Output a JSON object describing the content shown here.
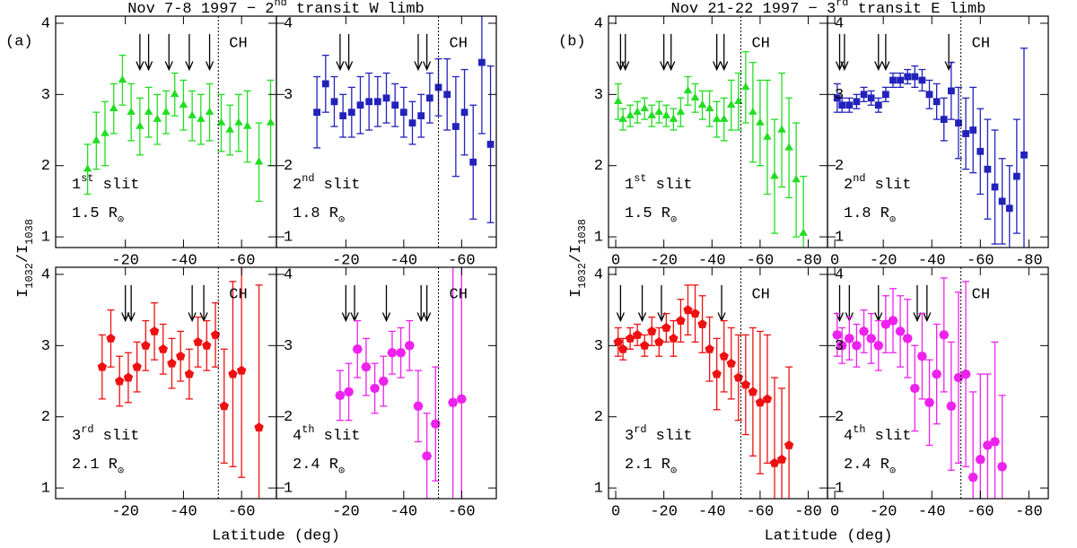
{
  "figure": {
    "groups": [
      {
        "tag": "(a)",
        "title": [
          "Nov 7-8 1997 − 2",
          "nd",
          " transit W limb"
        ],
        "xlabel": "Latitude (deg)",
        "ylabel": [
          "I",
          "1032",
          "/I",
          "1038"
        ]
      },
      {
        "tag": "(b)",
        "title": [
          "Nov 21-22 1997 − 3",
          "rd",
          " transit E limb"
        ],
        "xlabel": "Latitude (deg)",
        "ylabel": [
          "I",
          "1032",
          "/I",
          "1038"
        ]
      }
    ]
  },
  "chart_data": [
    {
      "type": "scatter",
      "marker": "triangle",
      "color": "#22dd22",
      "xlim": [
        4,
        -72
      ],
      "ylim": [
        0.85,
        4.1
      ],
      "xticks": [
        -20,
        -40,
        -60
      ],
      "yticks": [
        1,
        2,
        3,
        4
      ],
      "boundary": -52,
      "boundary_label": "CH",
      "label_line1": [
        "1",
        "st",
        " slit"
      ],
      "label_line2": [
        "1.5 R",
        "⊙"
      ],
      "arrows": [
        -25,
        -28,
        -35,
        -42,
        -49
      ],
      "series": [
        {
          "x": [
            -7,
            -10,
            -13,
            -16,
            -19,
            -22,
            -25,
            -28,
            -31,
            -34,
            -37,
            -40,
            -43,
            -46,
            -49,
            -53,
            -56,
            -59,
            -62,
            -66,
            -70
          ],
          "values": [
            1.95,
            2.35,
            2.45,
            2.8,
            3.2,
            2.75,
            2.55,
            2.75,
            2.65,
            2.75,
            3.0,
            2.85,
            2.7,
            2.65,
            2.75,
            2.6,
            2.5,
            2.6,
            2.55,
            2.05,
            2.6
          ],
          "errors": [
            0.35,
            0.4,
            0.45,
            0.35,
            0.35,
            0.4,
            0.4,
            0.35,
            0.35,
            0.3,
            0.3,
            0.35,
            0.35,
            0.35,
            0.4,
            0.4,
            0.35,
            0.4,
            0.5,
            0.55,
            0.6
          ]
        }
      ]
    },
    {
      "type": "scatter",
      "marker": "square",
      "color": "#2222bb",
      "xlim": [
        4,
        -72
      ],
      "ylim": [
        0.85,
        4.1
      ],
      "xticks": [
        -20,
        -40,
        -60
      ],
      "yticks": [
        1,
        2,
        3,
        4
      ],
      "boundary": -52,
      "boundary_label": "CH",
      "label_line1": [
        "2",
        "nd",
        " slit"
      ],
      "label_line2": [
        "1.8 R",
        "⊙"
      ],
      "arrows": [
        -18,
        -21,
        -45,
        -48
      ],
      "series": [
        {
          "x": [
            -10,
            -13,
            -16,
            -19,
            -22,
            -25,
            -28,
            -31,
            -34,
            -37,
            -40,
            -43,
            -46,
            -49,
            -52,
            -55,
            -58,
            -61,
            -64,
            -67,
            -70
          ],
          "values": [
            2.75,
            3.15,
            2.9,
            2.7,
            2.75,
            2.85,
            2.9,
            2.9,
            2.95,
            2.85,
            2.75,
            2.6,
            2.7,
            2.95,
            3.1,
            3.0,
            2.55,
            2.75,
            2.05,
            3.45,
            2.3
          ],
          "errors": [
            0.5,
            0.4,
            0.35,
            0.3,
            0.35,
            0.4,
            0.4,
            0.35,
            0.35,
            0.3,
            0.35,
            0.3,
            0.3,
            0.35,
            0.4,
            0.5,
            0.7,
            0.6,
            0.8,
            1.0,
            1.1
          ]
        }
      ]
    },
    {
      "type": "scatter",
      "marker": "pentagon",
      "color": "#ee1111",
      "xlim": [
        4,
        -72
      ],
      "ylim": [
        0.85,
        4.1
      ],
      "xticks": [
        -20,
        -40,
        -60
      ],
      "yticks": [
        1,
        2,
        3,
        4
      ],
      "boundary": -52,
      "boundary_label": "CH",
      "label_line1": [
        "3",
        "rd",
        " slit"
      ],
      "label_line2": [
        "2.1 R",
        "⊙"
      ],
      "arrows": [
        -20,
        -22,
        -43,
        -47
      ],
      "series": [
        {
          "x": [
            -12,
            -15,
            -18,
            -21,
            -24,
            -27,
            -30,
            -33,
            -36,
            -39,
            -42,
            -45,
            -48,
            -51,
            -54,
            -57,
            -60,
            -66
          ],
          "values": [
            2.7,
            3.1,
            2.5,
            2.55,
            2.7,
            3.0,
            3.2,
            2.95,
            2.75,
            2.85,
            2.6,
            3.05,
            3.0,
            3.15,
            2.15,
            2.6,
            2.65,
            1.85
          ],
          "errors": [
            0.45,
            0.4,
            0.35,
            0.35,
            0.35,
            0.35,
            0.4,
            0.35,
            0.35,
            0.35,
            0.35,
            0.35,
            0.35,
            0.45,
            0.8,
            1.3,
            1.5,
            2.0
          ]
        }
      ]
    },
    {
      "type": "scatter",
      "marker": "hexagon",
      "color": "#ee22ee",
      "xlim": [
        4,
        -72
      ],
      "ylim": [
        0.85,
        4.1
      ],
      "xticks": [
        -20,
        -40,
        -60
      ],
      "yticks": [
        1,
        2,
        3,
        4
      ],
      "boundary": -52,
      "boundary_label": "CH",
      "label_line1": [
        "4",
        "th",
        " slit"
      ],
      "label_line2": [
        "2.4 R",
        "⊙"
      ],
      "arrows": [
        -20,
        -23,
        -34,
        -46,
        -48
      ],
      "series": [
        {
          "x": [
            -18,
            -21,
            -24,
            -27,
            -30,
            -33,
            -36,
            -39,
            -42,
            -45,
            -48,
            -51,
            -57,
            -60
          ],
          "values": [
            2.3,
            2.35,
            2.95,
            2.7,
            2.4,
            2.5,
            2.9,
            2.9,
            3.0,
            2.15,
            1.45,
            1.9,
            2.2,
            2.25
          ],
          "errors": [
            0.35,
            0.4,
            0.4,
            0.4,
            0.35,
            0.35,
            0.3,
            0.35,
            0.35,
            0.5,
            0.6,
            0.8,
            2.0,
            2.2
          ]
        }
      ]
    },
    {
      "type": "scatter",
      "marker": "triangle",
      "color": "#22dd22",
      "xlim": [
        3,
        -88
      ],
      "ylim": [
        0.85,
        4.1
      ],
      "xticks": [
        0,
        -20,
        -40,
        -60,
        -80
      ],
      "yticks": [
        1,
        2,
        3,
        4
      ],
      "boundary": -52,
      "boundary_label": "CH",
      "label_line1": [
        "1",
        "st",
        " slit"
      ],
      "label_line2": [
        "1.5 R",
        "⊙"
      ],
      "arrows": [
        -2,
        -4,
        -20,
        -23,
        -42,
        -45
      ],
      "series": [
        {
          "x": [
            -1,
            -3,
            -6,
            -9,
            -12,
            -15,
            -18,
            -21,
            -24,
            -27,
            -30,
            -33,
            -36,
            -39,
            -42,
            -45,
            -48,
            -51,
            -54,
            -57,
            -60,
            -63,
            -66,
            -69,
            -72,
            -75,
            -78
          ],
          "values": [
            2.9,
            2.65,
            2.7,
            2.75,
            2.8,
            2.7,
            2.75,
            2.7,
            2.65,
            2.75,
            3.05,
            2.95,
            2.85,
            2.8,
            2.65,
            2.65,
            2.85,
            2.9,
            3.1,
            2.75,
            2.6,
            2.4,
            1.85,
            2.5,
            2.25,
            1.8,
            1.05
          ],
          "errors": [
            0.25,
            0.15,
            0.15,
            0.15,
            0.15,
            0.15,
            0.15,
            0.15,
            0.15,
            0.2,
            0.2,
            0.2,
            0.2,
            0.25,
            0.25,
            0.3,
            0.35,
            0.4,
            0.5,
            0.7,
            0.6,
            0.8,
            0.8,
            0.8,
            0.7,
            0.8,
            0.8
          ]
        }
      ]
    },
    {
      "type": "scatter",
      "marker": "square",
      "color": "#2222bb",
      "xlim": [
        3,
        -88
      ],
      "ylim": [
        0.85,
        4.1
      ],
      "xticks": [
        0,
        -20,
        -40,
        -60,
        -80
      ],
      "yticks": [
        1,
        2,
        3,
        4
      ],
      "boundary": -52,
      "boundary_label": "CH",
      "label_line1": [
        "2",
        "nd",
        " slit"
      ],
      "label_line2": [
        "1.8 R",
        "⊙"
      ],
      "arrows": [
        -2,
        -4,
        -18,
        -21,
        -47
      ],
      "series": [
        {
          "x": [
            -1,
            -3,
            -6,
            -9,
            -12,
            -15,
            -18,
            -21,
            -24,
            -27,
            -30,
            -33,
            -36,
            -39,
            -42,
            -45,
            -48,
            -51,
            -54,
            -57,
            -60,
            -63,
            -66,
            -69,
            -72,
            -75,
            -78
          ],
          "values": [
            2.95,
            2.85,
            2.85,
            2.9,
            3.0,
            2.95,
            2.85,
            3.0,
            3.2,
            3.2,
            3.25,
            3.25,
            3.2,
            3.0,
            2.9,
            2.65,
            3.05,
            2.6,
            2.45,
            2.5,
            2.2,
            1.95,
            1.7,
            1.5,
            1.4,
            1.85,
            2.15
          ],
          "errors": [
            0.2,
            0.1,
            0.1,
            0.1,
            0.1,
            0.1,
            0.1,
            0.1,
            0.1,
            0.1,
            0.1,
            0.15,
            0.15,
            0.2,
            0.25,
            0.3,
            0.4,
            0.5,
            0.5,
            0.6,
            0.6,
            0.7,
            0.8,
            0.6,
            0.6,
            0.8,
            1.5
          ]
        }
      ]
    },
    {
      "type": "scatter",
      "marker": "pentagon",
      "color": "#ee1111",
      "xlim": [
        3,
        -88
      ],
      "ylim": [
        0.85,
        4.1
      ],
      "xticks": [
        0,
        -20,
        -40,
        -60,
        -80
      ],
      "yticks": [
        1,
        2,
        3,
        4
      ],
      "boundary": -52,
      "boundary_label": "CH",
      "label_line1": [
        "3",
        "rd",
        " slit"
      ],
      "label_line2": [
        "2.1 R",
        "⊙"
      ],
      "arrows": [
        -2,
        -11,
        -19,
        -44
      ],
      "series": [
        {
          "x": [
            -1,
            -3,
            -6,
            -9,
            -12,
            -15,
            -18,
            -21,
            -24,
            -27,
            -30,
            -33,
            -36,
            -39,
            -42,
            -45,
            -48,
            -51,
            -54,
            -57,
            -60,
            -63,
            -66,
            -69,
            -72
          ],
          "values": [
            3.05,
            2.95,
            3.1,
            3.15,
            3.0,
            3.2,
            3.05,
            3.25,
            3.1,
            3.35,
            3.5,
            3.45,
            3.3,
            2.95,
            2.6,
            2.85,
            2.75,
            2.55,
            2.45,
            2.35,
            2.2,
            2.25,
            1.35,
            1.4,
            1.6
          ],
          "errors": [
            0.2,
            0.15,
            0.15,
            0.15,
            0.15,
            0.2,
            0.2,
            0.2,
            0.25,
            0.3,
            0.35,
            0.4,
            0.4,
            0.45,
            0.5,
            0.5,
            0.5,
            0.6,
            0.7,
            0.9,
            1.0,
            0.9,
            1.2,
            1.0,
            1.1
          ]
        }
      ]
    },
    {
      "type": "scatter",
      "marker": "hexagon",
      "color": "#ee22ee",
      "xlim": [
        3,
        -88
      ],
      "ylim": [
        0.85,
        4.1
      ],
      "xticks": [
        0,
        -20,
        -40,
        -60,
        -80
      ],
      "yticks": [
        1,
        2,
        3,
        4
      ],
      "boundary": -52,
      "boundary_label": "CH",
      "label_line1": [
        "4",
        "th",
        " slit"
      ],
      "label_line2": [
        "2.4 R",
        "⊙"
      ],
      "arrows": [
        -2,
        -6,
        -18,
        -34,
        -38
      ],
      "series": [
        {
          "x": [
            -1,
            -3,
            -6,
            -9,
            -12,
            -15,
            -18,
            -21,
            -24,
            -27,
            -30,
            -33,
            -36,
            -39,
            -42,
            -45,
            -48,
            -51,
            -54,
            -57,
            -60,
            -63,
            -66,
            -69
          ],
          "values": [
            3.15,
            3.0,
            3.1,
            3.0,
            3.2,
            3.1,
            3.0,
            3.3,
            3.35,
            3.2,
            3.1,
            2.4,
            2.85,
            2.2,
            2.6,
            3.15,
            2.15,
            2.55,
            2.6,
            1.15,
            1.4,
            1.6,
            1.65,
            1.3
          ],
          "errors": [
            0.3,
            0.25,
            0.3,
            0.3,
            0.3,
            0.35,
            0.35,
            0.4,
            0.45,
            0.5,
            0.55,
            0.6,
            0.6,
            0.6,
            0.7,
            0.8,
            0.9,
            1.2,
            1.3,
            1.2,
            1.2,
            1.0,
            1.4,
            1.0
          ]
        }
      ]
    }
  ]
}
